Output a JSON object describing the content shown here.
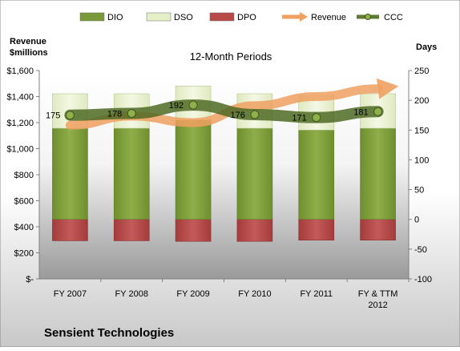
{
  "company": "Sensient Technologies",
  "chart_data": {
    "type": "bar",
    "title": "12-Month Periods",
    "categories": [
      "FY 2007",
      "FY 2008",
      "FY 2009",
      "FY 2010",
      "FY 2011",
      "FY & TTM 2012"
    ],
    "legend": {
      "placement": "top",
      "entries": [
        {
          "name": "DIO",
          "color": "#7a9a3a"
        },
        {
          "name": "DSO",
          "color": "#e6f0c8"
        },
        {
          "name": "DPO",
          "color": "#b84a4a"
        },
        {
          "name": "Revenue",
          "color": "#f0a060"
        },
        {
          "name": "CCC",
          "color": "#5e7a30"
        }
      ]
    },
    "y_left": {
      "label_line1": "Revenue",
      "label_line2": "$millions",
      "ylim": [
        0,
        1600
      ],
      "ticks": [
        0,
        200,
        400,
        600,
        800,
        1000,
        1200,
        1400,
        1600
      ],
      "tick_labels": [
        "$-",
        "$200",
        "$400",
        "$600",
        "$800",
        "$1,000",
        "$1,200",
        "$1,400",
        "$1,600"
      ]
    },
    "y_right": {
      "label": "Days",
      "ylim": [
        -100,
        250
      ],
      "ticks": [
        -100,
        -50,
        0,
        50,
        100,
        150,
        200,
        250
      ],
      "tick_labels": [
        "-100",
        "-50",
        "0",
        "50",
        "100",
        "150",
        "200",
        "250"
      ]
    },
    "series": [
      {
        "name": "DIO",
        "axis": "right",
        "values": [
          153,
          153,
          167,
          153,
          150,
          153
        ]
      },
      {
        "name": "DSO",
        "axis": "right",
        "values": [
          58,
          58,
          57,
          58,
          58,
          58
        ]
      },
      {
        "name": "DPO",
        "axis": "right",
        "values": [
          -36,
          -36,
          -37,
          -37,
          -35,
          -35
        ]
      },
      {
        "name": "Revenue",
        "axis": "left",
        "values": [
          1180,
          1250,
          1200,
          1330,
          1400,
          1460
        ]
      },
      {
        "name": "CCC",
        "axis": "right",
        "values": [
          175,
          178,
          192,
          176,
          171,
          181
        ],
        "data_labels": [
          "175",
          "178",
          "192",
          "176",
          "171",
          "181"
        ]
      }
    ],
    "grid": false
  }
}
